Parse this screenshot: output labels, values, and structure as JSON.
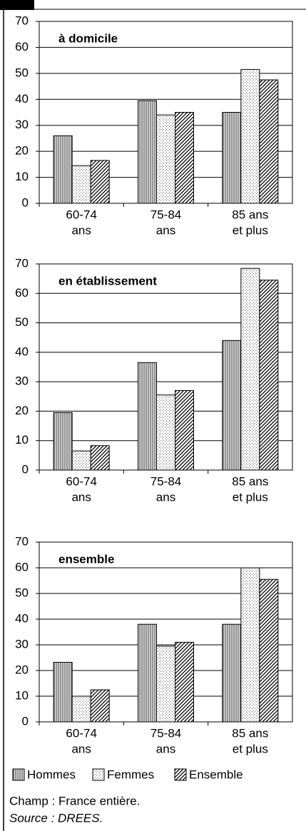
{
  "chart_data": [
    {
      "type": "bar",
      "title": "à domicile",
      "categories": [
        [
          "60-74",
          "ans"
        ],
        [
          "75-84",
          "ans"
        ],
        [
          "85 ans",
          "et plus"
        ]
      ],
      "series": [
        {
          "name": "Hommes",
          "pattern": "vertical",
          "values": [
            26,
            39.5,
            35
          ]
        },
        {
          "name": "Femmes",
          "pattern": "dots",
          "values": [
            14.5,
            34,
            51.5
          ]
        },
        {
          "name": "Ensemble",
          "pattern": "diagonal",
          "values": [
            16.5,
            35,
            47.5
          ]
        }
      ],
      "ylim": [
        0,
        70
      ],
      "yticks": [
        0,
        10,
        20,
        30,
        40,
        50,
        60,
        70
      ],
      "grid": true
    },
    {
      "type": "bar",
      "title": "en établissement",
      "categories": [
        [
          "60-74",
          "ans"
        ],
        [
          "75-84",
          "ans"
        ],
        [
          "85 ans",
          "et plus"
        ]
      ],
      "series": [
        {
          "name": "Hommes",
          "pattern": "vertical",
          "values": [
            19.5,
            36.5,
            44
          ]
        },
        {
          "name": "Femmes",
          "pattern": "dots",
          "values": [
            6.5,
            25.5,
            68.5
          ]
        },
        {
          "name": "Ensemble",
          "pattern": "diagonal",
          "values": [
            8.3,
            27,
            64.5
          ]
        }
      ],
      "ylim": [
        0,
        70
      ],
      "yticks": [
        0,
        10,
        20,
        30,
        40,
        50,
        60,
        70
      ],
      "grid": true
    },
    {
      "type": "bar",
      "title": "ensemble",
      "categories": [
        [
          "60-74",
          "ans"
        ],
        [
          "75-84",
          "ans"
        ],
        [
          "85 ans",
          "et plus"
        ]
      ],
      "series": [
        {
          "name": "Hommes",
          "pattern": "vertical",
          "values": [
            23.2,
            38,
            38
          ]
        },
        {
          "name": "Femmes",
          "pattern": "dots",
          "values": [
            10,
            29.5,
            60
          ]
        },
        {
          "name": "Ensemble",
          "pattern": "diagonal",
          "values": [
            12.5,
            31,
            55.5
          ]
        }
      ],
      "ylim": [
        0,
        70
      ],
      "yticks": [
        0,
        10,
        20,
        30,
        40,
        50,
        60,
        70
      ],
      "grid": true
    }
  ],
  "notes": [
    "Champ : France entière.",
    "Source : DREES."
  ]
}
